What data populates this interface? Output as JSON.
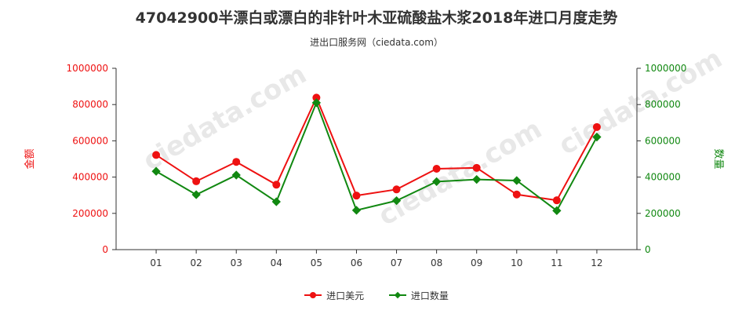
{
  "title": "47042900半漂白或漂白的非针叶木亚硫酸盐木浆2018年进口月度走势",
  "subtitle": "进出口服务网（ciedata.com）",
  "colors": {
    "value": "#ee1111",
    "quantity": "#118811",
    "axis": "#333333",
    "grid": "#dddddd"
  },
  "legend": {
    "value_label": "进口美元",
    "quantity_label": "进口数量"
  },
  "chart_data": {
    "type": "line",
    "categories": [
      "01",
      "02",
      "03",
      "04",
      "05",
      "06",
      "07",
      "08",
      "09",
      "10",
      "11",
      "12"
    ],
    "series": [
      {
        "name": "进口美元",
        "axis": "left",
        "values": [
          522000,
          377000,
          484000,
          358000,
          838000,
          298000,
          332000,
          446000,
          451000,
          304000,
          272000,
          676000
        ]
      },
      {
        "name": "进口数量",
        "axis": "right",
        "values": [
          432000,
          303000,
          411000,
          264000,
          810000,
          217000,
          270000,
          375000,
          387000,
          381000,
          215000,
          621000
        ]
      }
    ],
    "ylabel_left": "金额",
    "ylabel_right": "数量",
    "ylim_left": [
      0,
      1000000
    ],
    "ylim_right": [
      0,
      1000000
    ],
    "yticks": [
      0,
      200000,
      400000,
      600000,
      800000,
      1000000
    ],
    "grid": false,
    "legend_position": "bottom"
  }
}
